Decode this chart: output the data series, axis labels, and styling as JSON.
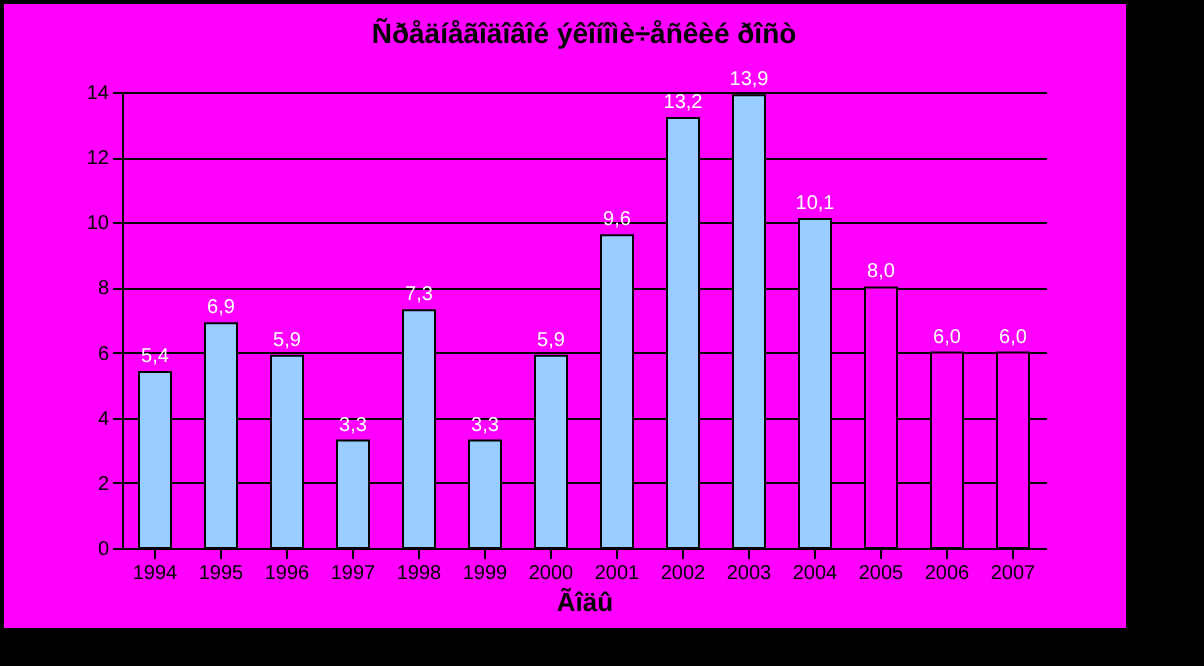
{
  "chart_data": {
    "type": "bar",
    "title": "Ñðåäíåãîäîâîé ýêîíîìè÷åñêèé ðîñò",
    "xlabel": "Ãîäû",
    "categories": [
      "1994",
      "1995",
      "1996",
      "1997",
      "1998",
      "1999",
      "2000",
      "2001",
      "2002",
      "2003",
      "2004",
      "2005",
      "2006",
      "2007"
    ],
    "values": [
      5.4,
      6.9,
      5.9,
      3.3,
      7.3,
      3.3,
      5.9,
      9.6,
      13.2,
      13.9,
      10.1,
      8.0,
      6.0,
      6.0
    ],
    "colors": [
      "#99ccff",
      "#99ccff",
      "#99ccff",
      "#99ccff",
      "#99ccff",
      "#99ccff",
      "#99ccff",
      "#99ccff",
      "#99ccff",
      "#99ccff",
      "#99ccff",
      "#ff00ff",
      "#ff00ff",
      "#ff00ff"
    ],
    "value_labels": [
      "5,4",
      "6,9",
      "5,9",
      "3,3",
      "7,3",
      "3,3",
      "5,9",
      "9,6",
      "13,2",
      "13,9",
      "10,1",
      "8,0",
      "6,0",
      "6,0"
    ],
    "ylim": [
      0,
      14
    ],
    "yticks": [
      0,
      2,
      4,
      6,
      8,
      10,
      12,
      14
    ],
    "grid": "y"
  }
}
